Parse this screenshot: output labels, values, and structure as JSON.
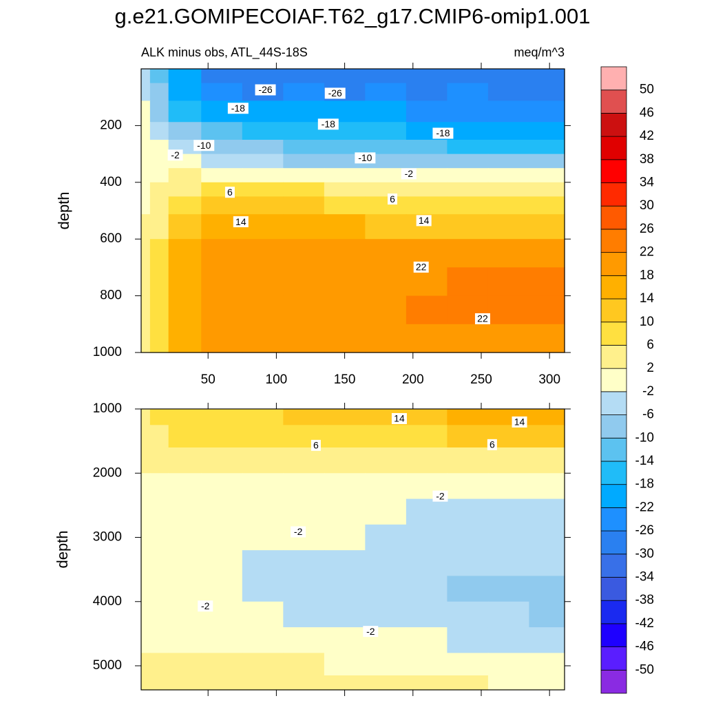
{
  "title": "g.e21.GOMIPECOIAF.T62_g17.CMIP6-omip1.001",
  "colorbar": {
    "levels": [
      -50,
      -46,
      -42,
      -38,
      -34,
      -30,
      -26,
      -22,
      -18,
      -14,
      -10,
      -6,
      -2,
      2,
      6,
      10,
      14,
      18,
      22,
      26,
      30,
      34,
      38,
      42,
      46,
      50
    ],
    "colors": [
      "#8a2be2",
      "#5a1eff",
      "#1e00ff",
      "#1a2af0",
      "#3a5ae0",
      "#3870e8",
      "#2a80f0",
      "#1e90ff",
      "#00aaff",
      "#20bcf8",
      "#5cc2f0",
      "#90caee",
      "#b4dcf4",
      "#ffffc8",
      "#fff08c",
      "#ffe040",
      "#ffc820",
      "#ffb000",
      "#ff9a00",
      "#ff7d00",
      "#ff5a00",
      "#ff2a00",
      "#ff0000",
      "#e00000",
      "#cc1010",
      "#e05050",
      "#ffb0b0"
    ]
  },
  "chart_data": [
    {
      "type": "contour",
      "left_string": "ALK minus obs, ATL_44S-18S",
      "right_string": "meq/m^3",
      "ylabel": "depth",
      "xlim": [
        1,
        311
      ],
      "ylim": [
        0,
        1000
      ],
      "y_inverted": true,
      "xticks": [
        50,
        100,
        150,
        200,
        250,
        300
      ],
      "xtick_labels": true,
      "yticks": [
        200,
        400,
        600,
        800,
        1000
      ],
      "x": [
        3,
        12,
        30,
        60,
        90,
        120,
        150,
        180,
        210,
        240,
        270,
        300
      ],
      "y": [
        25,
        75,
        150,
        225,
        275,
        325,
        375,
        425,
        475,
        550,
        650,
        750,
        850,
        950
      ],
      "values": [
        [
          -4,
          -12,
          -22,
          -27,
          -28,
          -27,
          -28,
          -27,
          -28,
          -27,
          -28,
          -28
        ],
        [
          -3,
          -10,
          -20,
          -25,
          -27,
          -26,
          -27,
          -26,
          -27,
          -26,
          -27,
          -27
        ],
        [
          -2,
          -7,
          -15,
          -19,
          -21,
          -21,
          -22,
          -22,
          -23,
          -23,
          -24,
          -24
        ],
        [
          -1,
          -4,
          -10,
          -13,
          -15,
          -16,
          -17,
          -18,
          -19,
          -20,
          -21,
          -21
        ],
        [
          0,
          -2,
          -5,
          -8,
          -10,
          -11,
          -12,
          -13,
          -14,
          -15,
          -16,
          -16
        ],
        [
          0,
          0,
          -1,
          -4,
          -6,
          -7,
          -8,
          -9,
          -9,
          -10,
          -10,
          -10
        ],
        [
          0,
          1,
          2,
          1,
          0,
          -1,
          -1,
          -2,
          -2,
          -2,
          -2,
          -2
        ],
        [
          1,
          2,
          5,
          6,
          6,
          6,
          5,
          4,
          4,
          4,
          4,
          4
        ],
        [
          1,
          3,
          8,
          10,
          10,
          10,
          9,
          8,
          8,
          8,
          8,
          8
        ],
        [
          2,
          5,
          12,
          15,
          15,
          15,
          14,
          13,
          13,
          13,
          13,
          13
        ],
        [
          2,
          6,
          15,
          19,
          20,
          19,
          19,
          19,
          20,
          20,
          20,
          20
        ],
        [
          3,
          7,
          15,
          20,
          21,
          21,
          20,
          21,
          21,
          23,
          23,
          23
        ],
        [
          3,
          8,
          15,
          20,
          21,
          21,
          21,
          21,
          22,
          23,
          23,
          22
        ],
        [
          3,
          7,
          14,
          19,
          20,
          20,
          19,
          19,
          20,
          21,
          21,
          21
        ]
      ],
      "contour_labels": [
        {
          "value": -26,
          "x": 92,
          "y": 74
        },
        {
          "value": -26,
          "x": 143,
          "y": 86
        },
        {
          "value": -18,
          "x": 72,
          "y": 139
        },
        {
          "value": -18,
          "x": 138,
          "y": 195
        },
        {
          "value": -18,
          "x": 222,
          "y": 227
        },
        {
          "value": -10,
          "x": 47,
          "y": 270
        },
        {
          "value": -2,
          "x": 26,
          "y": 304
        },
        {
          "value": -10,
          "x": 165,
          "y": 314
        },
        {
          "value": -2,
          "x": 197,
          "y": 370
        },
        {
          "value": 6,
          "x": 66,
          "y": 435
        },
        {
          "value": 6,
          "x": 185,
          "y": 459
        },
        {
          "value": 14,
          "x": 74,
          "y": 539
        },
        {
          "value": 14,
          "x": 208,
          "y": 535
        },
        {
          "value": 22,
          "x": 206,
          "y": 699
        },
        {
          "value": 22,
          "x": 251,
          "y": 881
        }
      ]
    },
    {
      "type": "contour",
      "ylabel": "depth",
      "xlim": [
        1,
        311
      ],
      "ylim": [
        1000,
        5375
      ],
      "y_inverted": true,
      "xticks": [
        50,
        100,
        150,
        200,
        250,
        300
      ],
      "xtick_labels": false,
      "yticks": [
        1000,
        2000,
        3000,
        4000,
        5000
      ],
      "x": [
        3,
        12,
        30,
        60,
        90,
        120,
        150,
        180,
        210,
        240,
        270,
        300
      ],
      "y": [
        1100,
        1400,
        1800,
        2200,
        2600,
        3000,
        3400,
        3800,
        4200,
        4600,
        5000,
        5300
      ],
      "values": [
        [
          4,
          6,
          8,
          9,
          9,
          10,
          11,
          12,
          13,
          15,
          15,
          14
        ],
        [
          3,
          4,
          6,
          7,
          7,
          7,
          8,
          9,
          9,
          10,
          10,
          10
        ],
        [
          2,
          2,
          3,
          3,
          4,
          4,
          4,
          4,
          4,
          5,
          5,
          5
        ],
        [
          1,
          1,
          1,
          1,
          1,
          1,
          0,
          0,
          -1,
          -1,
          -1,
          -1
        ],
        [
          1,
          0,
          0,
          0,
          -1,
          -1,
          -1,
          -2,
          -3,
          -3,
          -3,
          -3
        ],
        [
          1,
          0,
          0,
          0,
          -1,
          -1,
          -2,
          -3,
          -3,
          -3,
          -4,
          -4
        ],
        [
          1,
          0,
          0,
          -1,
          -3,
          -3,
          -4,
          -4,
          -5,
          -5,
          -5,
          -6
        ],
        [
          1,
          0,
          0,
          -1,
          -3,
          -4,
          -5,
          -4,
          -6,
          -7,
          -7,
          -7
        ],
        [
          1,
          1,
          0,
          -1,
          -2,
          -3,
          -3,
          -4,
          -5,
          -6,
          -6,
          -7
        ],
        [
          1,
          1,
          1,
          1,
          0,
          0,
          -1,
          -2,
          -2,
          -3,
          -4,
          -4
        ],
        [
          2,
          2,
          2,
          3,
          2,
          2,
          1,
          1,
          1,
          1,
          0,
          -1
        ],
        [
          2,
          2,
          3,
          4,
          3,
          3,
          2,
          2,
          3,
          2,
          1,
          1
        ]
      ],
      "contour_labels": [
        {
          "value": 14,
          "x": 190,
          "y": 1150
        },
        {
          "value": 14,
          "x": 278,
          "y": 1203
        },
        {
          "value": 6,
          "x": 129,
          "y": 1567
        },
        {
          "value": 6,
          "x": 258,
          "y": 1556
        },
        {
          "value": -2,
          "x": 220,
          "y": 2358
        },
        {
          "value": -2,
          "x": 116,
          "y": 2914
        },
        {
          "value": -2,
          "x": 48,
          "y": 4070
        },
        {
          "value": -2,
          "x": 169,
          "y": 4465
        }
      ]
    }
  ]
}
